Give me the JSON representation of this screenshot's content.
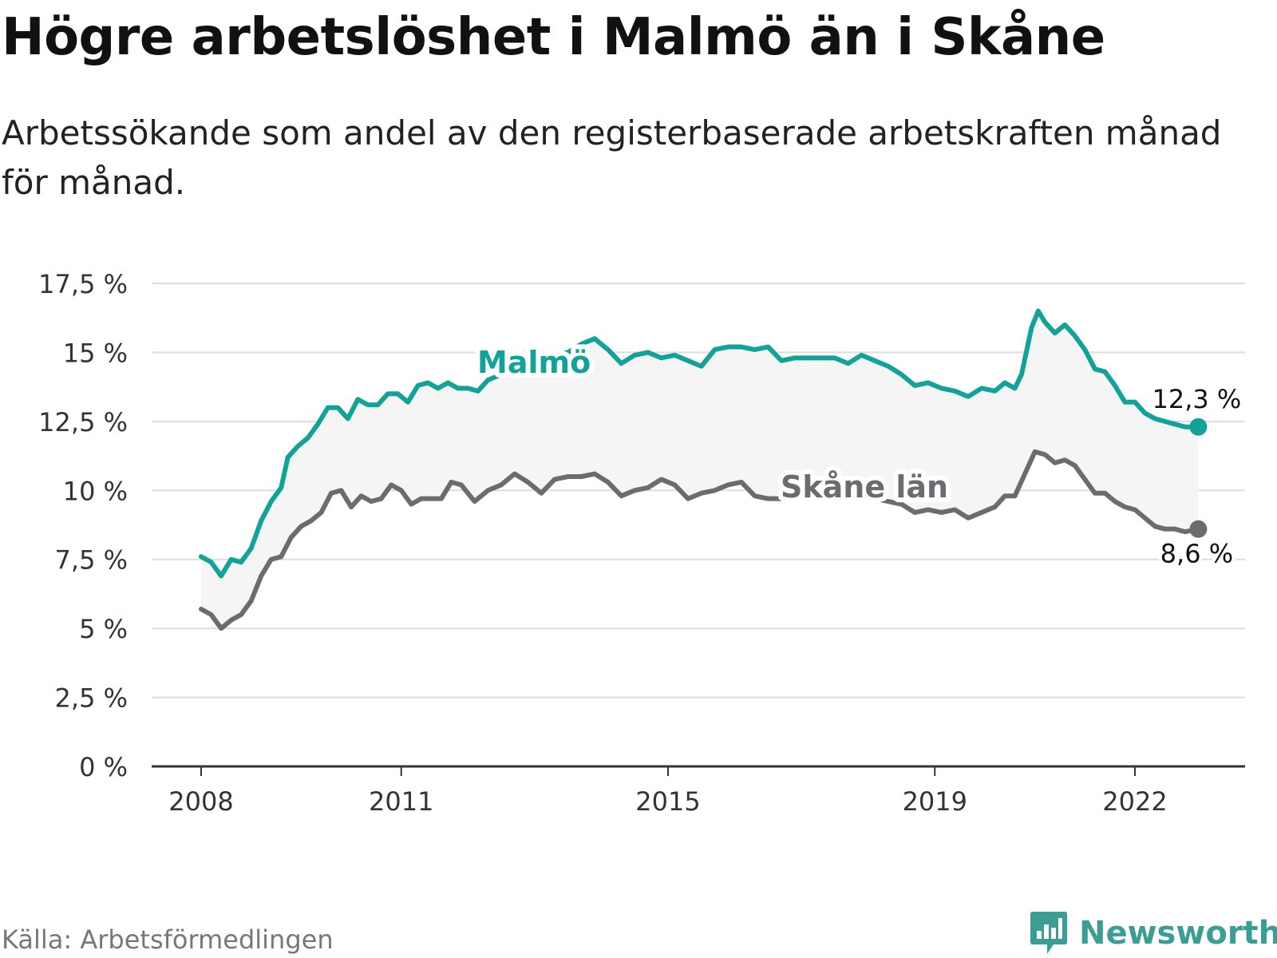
{
  "header": {
    "title": "Högre arbetslöshet i Malmö än i Skåne",
    "subtitle": "Arbetssökande som andel av den registerbaserade arbetskraften månad för månad."
  },
  "footer": {
    "source": "Källa: Arbetsförmedlingen",
    "brand": "Newsworthy"
  },
  "colors": {
    "malmo": "#12a398",
    "skane": "#6b6b70",
    "band": "#f5f5f5",
    "grid": "#dddddd",
    "axis": "#333333"
  },
  "chart_data": {
    "type": "line",
    "title": "Högre arbetslöshet i Malmö än i Skåne",
    "xlabel": "",
    "ylabel": "",
    "xlim": [
      2008,
      2023.3
    ],
    "ylim": [
      0,
      17.5
    ],
    "x_ticks": [
      2008,
      2011,
      2015,
      2019,
      2022
    ],
    "x_tick_labels": [
      "2008",
      "2011",
      "2015",
      "2019",
      "2022"
    ],
    "y_ticks": [
      0,
      2.5,
      5,
      7.5,
      10,
      12.5,
      15,
      17.5
    ],
    "y_tick_labels": [
      "0 %",
      "2,5 %",
      "5 %",
      "7,5 %",
      "10 %",
      "12,5 %",
      "15 %",
      "17,5 %"
    ],
    "grid": true,
    "series": [
      {
        "name": "Malmö",
        "label": "Malmö",
        "end_label": "12,3 %",
        "points": [
          [
            2008.0,
            7.6
          ],
          [
            2008.15,
            7.4
          ],
          [
            2008.3,
            6.9
          ],
          [
            2008.45,
            7.5
          ],
          [
            2008.6,
            7.4
          ],
          [
            2008.75,
            7.9
          ],
          [
            2008.9,
            8.9
          ],
          [
            2009.05,
            9.6
          ],
          [
            2009.2,
            10.1
          ],
          [
            2009.3,
            11.2
          ],
          [
            2009.45,
            11.6
          ],
          [
            2009.6,
            11.9
          ],
          [
            2009.75,
            12.4
          ],
          [
            2009.9,
            13.0
          ],
          [
            2010.05,
            13.0
          ],
          [
            2010.2,
            12.6
          ],
          [
            2010.35,
            13.3
          ],
          [
            2010.5,
            13.1
          ],
          [
            2010.65,
            13.1
          ],
          [
            2010.8,
            13.5
          ],
          [
            2010.95,
            13.5
          ],
          [
            2011.1,
            13.2
          ],
          [
            2011.25,
            13.8
          ],
          [
            2011.4,
            13.9
          ],
          [
            2011.55,
            13.7
          ],
          [
            2011.7,
            13.9
          ],
          [
            2011.85,
            13.7
          ],
          [
            2012.0,
            13.7
          ],
          [
            2012.15,
            13.6
          ],
          [
            2012.3,
            14.0
          ],
          [
            2012.5,
            14.2
          ],
          [
            2012.7,
            14.4
          ],
          [
            2012.9,
            14.6
          ],
          [
            2013.1,
            14.8
          ],
          [
            2013.3,
            14.9
          ],
          [
            2013.5,
            15.0
          ],
          [
            2013.7,
            15.3
          ],
          [
            2013.9,
            15.5
          ],
          [
            2014.1,
            15.1
          ],
          [
            2014.3,
            14.6
          ],
          [
            2014.5,
            14.9
          ],
          [
            2014.7,
            15.0
          ],
          [
            2014.9,
            14.8
          ],
          [
            2015.1,
            14.9
          ],
          [
            2015.3,
            14.7
          ],
          [
            2015.5,
            14.5
          ],
          [
            2015.7,
            15.1
          ],
          [
            2015.9,
            15.2
          ],
          [
            2016.1,
            15.2
          ],
          [
            2016.3,
            15.1
          ],
          [
            2016.5,
            15.2
          ],
          [
            2016.7,
            14.7
          ],
          [
            2016.9,
            14.8
          ],
          [
            2017.1,
            14.8
          ],
          [
            2017.3,
            14.8
          ],
          [
            2017.5,
            14.8
          ],
          [
            2017.7,
            14.6
          ],
          [
            2017.9,
            14.9
          ],
          [
            2018.1,
            14.7
          ],
          [
            2018.3,
            14.5
          ],
          [
            2018.5,
            14.2
          ],
          [
            2018.7,
            13.8
          ],
          [
            2018.9,
            13.9
          ],
          [
            2019.1,
            13.7
          ],
          [
            2019.3,
            13.6
          ],
          [
            2019.5,
            13.4
          ],
          [
            2019.7,
            13.7
          ],
          [
            2019.9,
            13.6
          ],
          [
            2020.05,
            13.9
          ],
          [
            2020.2,
            13.7
          ],
          [
            2020.3,
            14.2
          ],
          [
            2020.45,
            15.9
          ],
          [
            2020.55,
            16.5
          ],
          [
            2020.65,
            16.1
          ],
          [
            2020.8,
            15.7
          ],
          [
            2020.95,
            16.0
          ],
          [
            2021.1,
            15.6
          ],
          [
            2021.25,
            15.1
          ],
          [
            2021.4,
            14.4
          ],
          [
            2021.55,
            14.3
          ],
          [
            2021.7,
            13.8
          ],
          [
            2021.85,
            13.2
          ],
          [
            2022.0,
            13.2
          ],
          [
            2022.15,
            12.8
          ],
          [
            2022.3,
            12.6
          ],
          [
            2022.45,
            12.5
          ],
          [
            2022.6,
            12.4
          ],
          [
            2022.75,
            12.3
          ],
          [
            2022.95,
            12.3
          ]
        ]
      },
      {
        "name": "Skåne län",
        "label": "Skåne län",
        "end_label": "8,6 %",
        "points": [
          [
            2008.0,
            5.7
          ],
          [
            2008.15,
            5.5
          ],
          [
            2008.3,
            5.0
          ],
          [
            2008.45,
            5.3
          ],
          [
            2008.6,
            5.5
          ],
          [
            2008.75,
            6.0
          ],
          [
            2008.9,
            6.9
          ],
          [
            2009.05,
            7.5
          ],
          [
            2009.2,
            7.6
          ],
          [
            2009.35,
            8.3
          ],
          [
            2009.5,
            8.7
          ],
          [
            2009.65,
            8.9
          ],
          [
            2009.8,
            9.2
          ],
          [
            2009.95,
            9.9
          ],
          [
            2010.1,
            10.0
          ],
          [
            2010.25,
            9.4
          ],
          [
            2010.4,
            9.8
          ],
          [
            2010.55,
            9.6
          ],
          [
            2010.7,
            9.7
          ],
          [
            2010.85,
            10.2
          ],
          [
            2011.0,
            10.0
          ],
          [
            2011.15,
            9.5
          ],
          [
            2011.3,
            9.7
          ],
          [
            2011.45,
            9.7
          ],
          [
            2011.6,
            9.7
          ],
          [
            2011.75,
            10.3
          ],
          [
            2011.9,
            10.2
          ],
          [
            2012.1,
            9.6
          ],
          [
            2012.3,
            10.0
          ],
          [
            2012.5,
            10.2
          ],
          [
            2012.7,
            10.6
          ],
          [
            2012.9,
            10.3
          ],
          [
            2013.1,
            9.9
          ],
          [
            2013.3,
            10.4
          ],
          [
            2013.5,
            10.5
          ],
          [
            2013.7,
            10.5
          ],
          [
            2013.9,
            10.6
          ],
          [
            2014.1,
            10.3
          ],
          [
            2014.3,
            9.8
          ],
          [
            2014.5,
            10.0
          ],
          [
            2014.7,
            10.1
          ],
          [
            2014.9,
            10.4
          ],
          [
            2015.1,
            10.2
          ],
          [
            2015.3,
            9.7
          ],
          [
            2015.5,
            9.9
          ],
          [
            2015.7,
            10.0
          ],
          [
            2015.9,
            10.2
          ],
          [
            2016.1,
            10.3
          ],
          [
            2016.3,
            9.8
          ],
          [
            2016.5,
            9.7
          ],
          [
            2016.7,
            9.7
          ],
          [
            2016.9,
            9.7
          ],
          [
            2017.1,
            9.8
          ],
          [
            2017.3,
            9.9
          ],
          [
            2017.5,
            9.9
          ],
          [
            2017.7,
            9.7
          ],
          [
            2017.9,
            9.8
          ],
          [
            2018.1,
            9.7
          ],
          [
            2018.3,
            9.6
          ],
          [
            2018.5,
            9.5
          ],
          [
            2018.7,
            9.2
          ],
          [
            2018.9,
            9.3
          ],
          [
            2019.1,
            9.2
          ],
          [
            2019.3,
            9.3
          ],
          [
            2019.5,
            9.0
          ],
          [
            2019.7,
            9.2
          ],
          [
            2019.9,
            9.4
          ],
          [
            2020.05,
            9.8
          ],
          [
            2020.2,
            9.8
          ],
          [
            2020.35,
            10.6
          ],
          [
            2020.5,
            11.4
          ],
          [
            2020.65,
            11.3
          ],
          [
            2020.8,
            11.0
          ],
          [
            2020.95,
            11.1
          ],
          [
            2021.1,
            10.9
          ],
          [
            2021.25,
            10.4
          ],
          [
            2021.4,
            9.9
          ],
          [
            2021.55,
            9.9
          ],
          [
            2021.7,
            9.6
          ],
          [
            2021.85,
            9.4
          ],
          [
            2022.0,
            9.3
          ],
          [
            2022.15,
            9.0
          ],
          [
            2022.3,
            8.7
          ],
          [
            2022.45,
            8.6
          ],
          [
            2022.6,
            8.6
          ],
          [
            2022.75,
            8.5
          ],
          [
            2022.95,
            8.6
          ]
        ]
      }
    ]
  }
}
